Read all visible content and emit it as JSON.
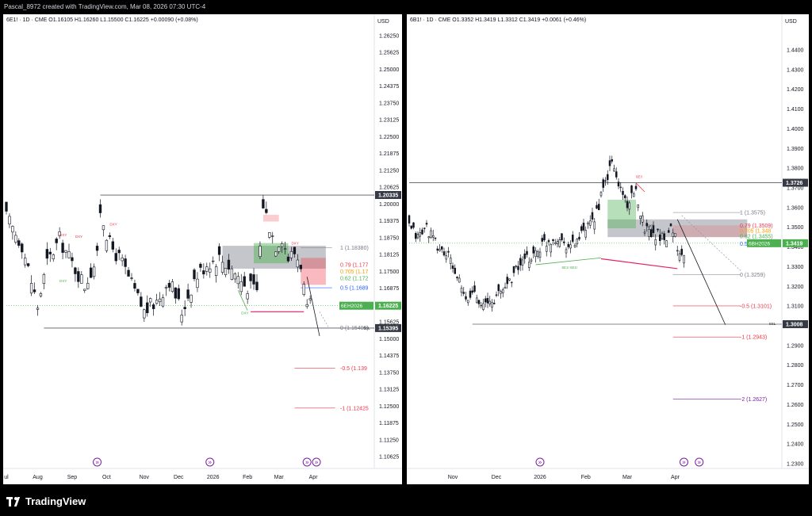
{
  "header": {
    "text": "Pascal_8972 created with TradingView.com, Mar 08, 2026 07:30 UTC-4"
  },
  "footer": {
    "brand": "TradingView",
    "logo_icon": "tradingview-logo-icon"
  },
  "colors": {
    "up": "#131722",
    "down": "#131722",
    "fib_079": "#f23645",
    "fib_0705": "#ff9800",
    "fib_062": "#4caf50",
    "fib_05": "#2962ff",
    "zone_gray": "#9598a1",
    "zone_green": "#4caf50",
    "zone_red": "#f23645",
    "price_tag": "#4caf50",
    "event_icon": "#7b1fa2"
  },
  "left": {
    "legend": "6E1! · 1D · CME  O1.16105  H1.16260  L1.15500  C1.16225  +0.00090 (+0.08%)",
    "currency": "USD",
    "yticks": [
      "1.26250",
      "1.25625",
      "1.25000",
      "1.24375",
      "1.23750",
      "1.23125",
      "1.22500",
      "1.21875",
      "1.21250",
      "1.20625",
      "1.20000",
      "1.19375",
      "1.18750",
      "1.18125",
      "1.17500",
      "1.16875",
      "1.16250",
      "1.15625",
      "1.15000",
      "1.14375",
      "1.13750",
      "1.13125",
      "1.12500",
      "1.11875",
      "1.11250",
      "1.10625"
    ],
    "xticks": [
      {
        "label": "ul",
        "i": 0
      },
      {
        "label": "Aug",
        "i": 10
      },
      {
        "label": "Sep",
        "i": 21
      },
      {
        "label": "Oct",
        "i": 32
      },
      {
        "label": "Nov",
        "i": 44
      },
      {
        "label": "Dec",
        "i": 55
      },
      {
        "label": "2026",
        "i": 66
      },
      {
        "label": "Feb",
        "i": 77
      },
      {
        "label": "Mar",
        "i": 87
      },
      {
        "label": "Apr",
        "i": 98
      }
    ],
    "price_tags": [
      {
        "label": "1.20335",
        "value": 1.20335,
        "kind": "dark"
      },
      {
        "label": "1.16225",
        "value": 1.16225,
        "kind": "green",
        "symbol": "6EH2026"
      },
      {
        "label": "1.15395",
        "value": 1.15395,
        "kind": "dark"
      }
    ],
    "fib": [
      {
        "label": "1 (1.18380)",
        "value": 1.1838,
        "color": "#787b86"
      },
      {
        "label": "0.79 (1.177",
        "value": 1.1775,
        "color": "#f23645"
      },
      {
        "label": "0.705 (1.17",
        "value": 1.175,
        "color": "#ff9800"
      },
      {
        "label": "0.62 (1.172",
        "value": 1.1725,
        "color": "#4caf50"
      },
      {
        "label": "0.5 (1.1689",
        "value": 1.1689,
        "color": "#2962ff"
      },
      {
        "label": "0 (1.15405)",
        "value": 1.15405,
        "color": "#787b86"
      },
      {
        "label": "-0.5 (1.139",
        "value": 1.139,
        "color": "#f23645"
      },
      {
        "label": "-1 (1.12425",
        "value": 1.12425,
        "color": "#f23645"
      }
    ],
    "annotations": [
      "DXY",
      "DXY",
      "DXY",
      "DXY",
      "DXY",
      "DXY",
      "SSL"
    ]
  },
  "right": {
    "legend": "6B1! · 1D · CME  O1.3352  H1.3419  L1.3312  C1.3419  +0.0061 (+0.46%)",
    "currency": "USD",
    "yticks": [
      "1.4400",
      "1.4300",
      "1.4200",
      "1.4100",
      "1.4000",
      "1.3900",
      "1.3800",
      "1.3700",
      "1.3600",
      "1.3500",
      "1.3400",
      "1.3300",
      "1.3200",
      "1.3100",
      "1.3000",
      "1.2900",
      "1.2800",
      "1.2700",
      "1.2600",
      "1.2500",
      "1.2400",
      "1.2300"
    ],
    "xticks": [
      {
        "label": "Nov",
        "i": 20
      },
      {
        "label": "Dec",
        "i": 40
      },
      {
        "label": "2026",
        "i": 60
      },
      {
        "label": "Feb",
        "i": 81
      },
      {
        "label": "Mar",
        "i": 100
      },
      {
        "label": "Apr",
        "i": 122
      }
    ],
    "price_tags": [
      {
        "label": "1.3726",
        "value": 1.3726,
        "kind": "dark"
      },
      {
        "label": "1.3419",
        "value": 1.3419,
        "kind": "green",
        "symbol": "6BH2026"
      },
      {
        "label": "1.3008",
        "value": 1.3008,
        "kind": "dark"
      }
    ],
    "fib": [
      {
        "label": "1 (1.3575)",
        "value": 1.3575,
        "color": "#787b86"
      },
      {
        "label": "0.79 (1.3509)",
        "value": 1.3509,
        "color": "#f23645"
      },
      {
        "label": "0.705 (1.348",
        "value": 1.3482,
        "color": "#ff9800"
      },
      {
        "label": "0.62 (1.3455)",
        "value": 1.3455,
        "color": "#4caf50"
      },
      {
        "label": "0.5 (1.3417)",
        "value": 1.3417,
        "color": "#2962ff"
      },
      {
        "label": "0 (1.3259)",
        "value": 1.3259,
        "color": "#787b86"
      },
      {
        "label": "-0.5 (1.3101)",
        "value": 1.3101,
        "color": "#f23645"
      },
      {
        "label": "-1 (1.2943)",
        "value": 1.2943,
        "color": "#f23645"
      },
      {
        "label": "-2 (1.2627)",
        "value": 1.2627,
        "color": "#7b1fa2"
      }
    ],
    "annotations": [
      "6E!!",
      "DXY",
      "6E1! 6E1!",
      "SSL"
    ]
  }
}
